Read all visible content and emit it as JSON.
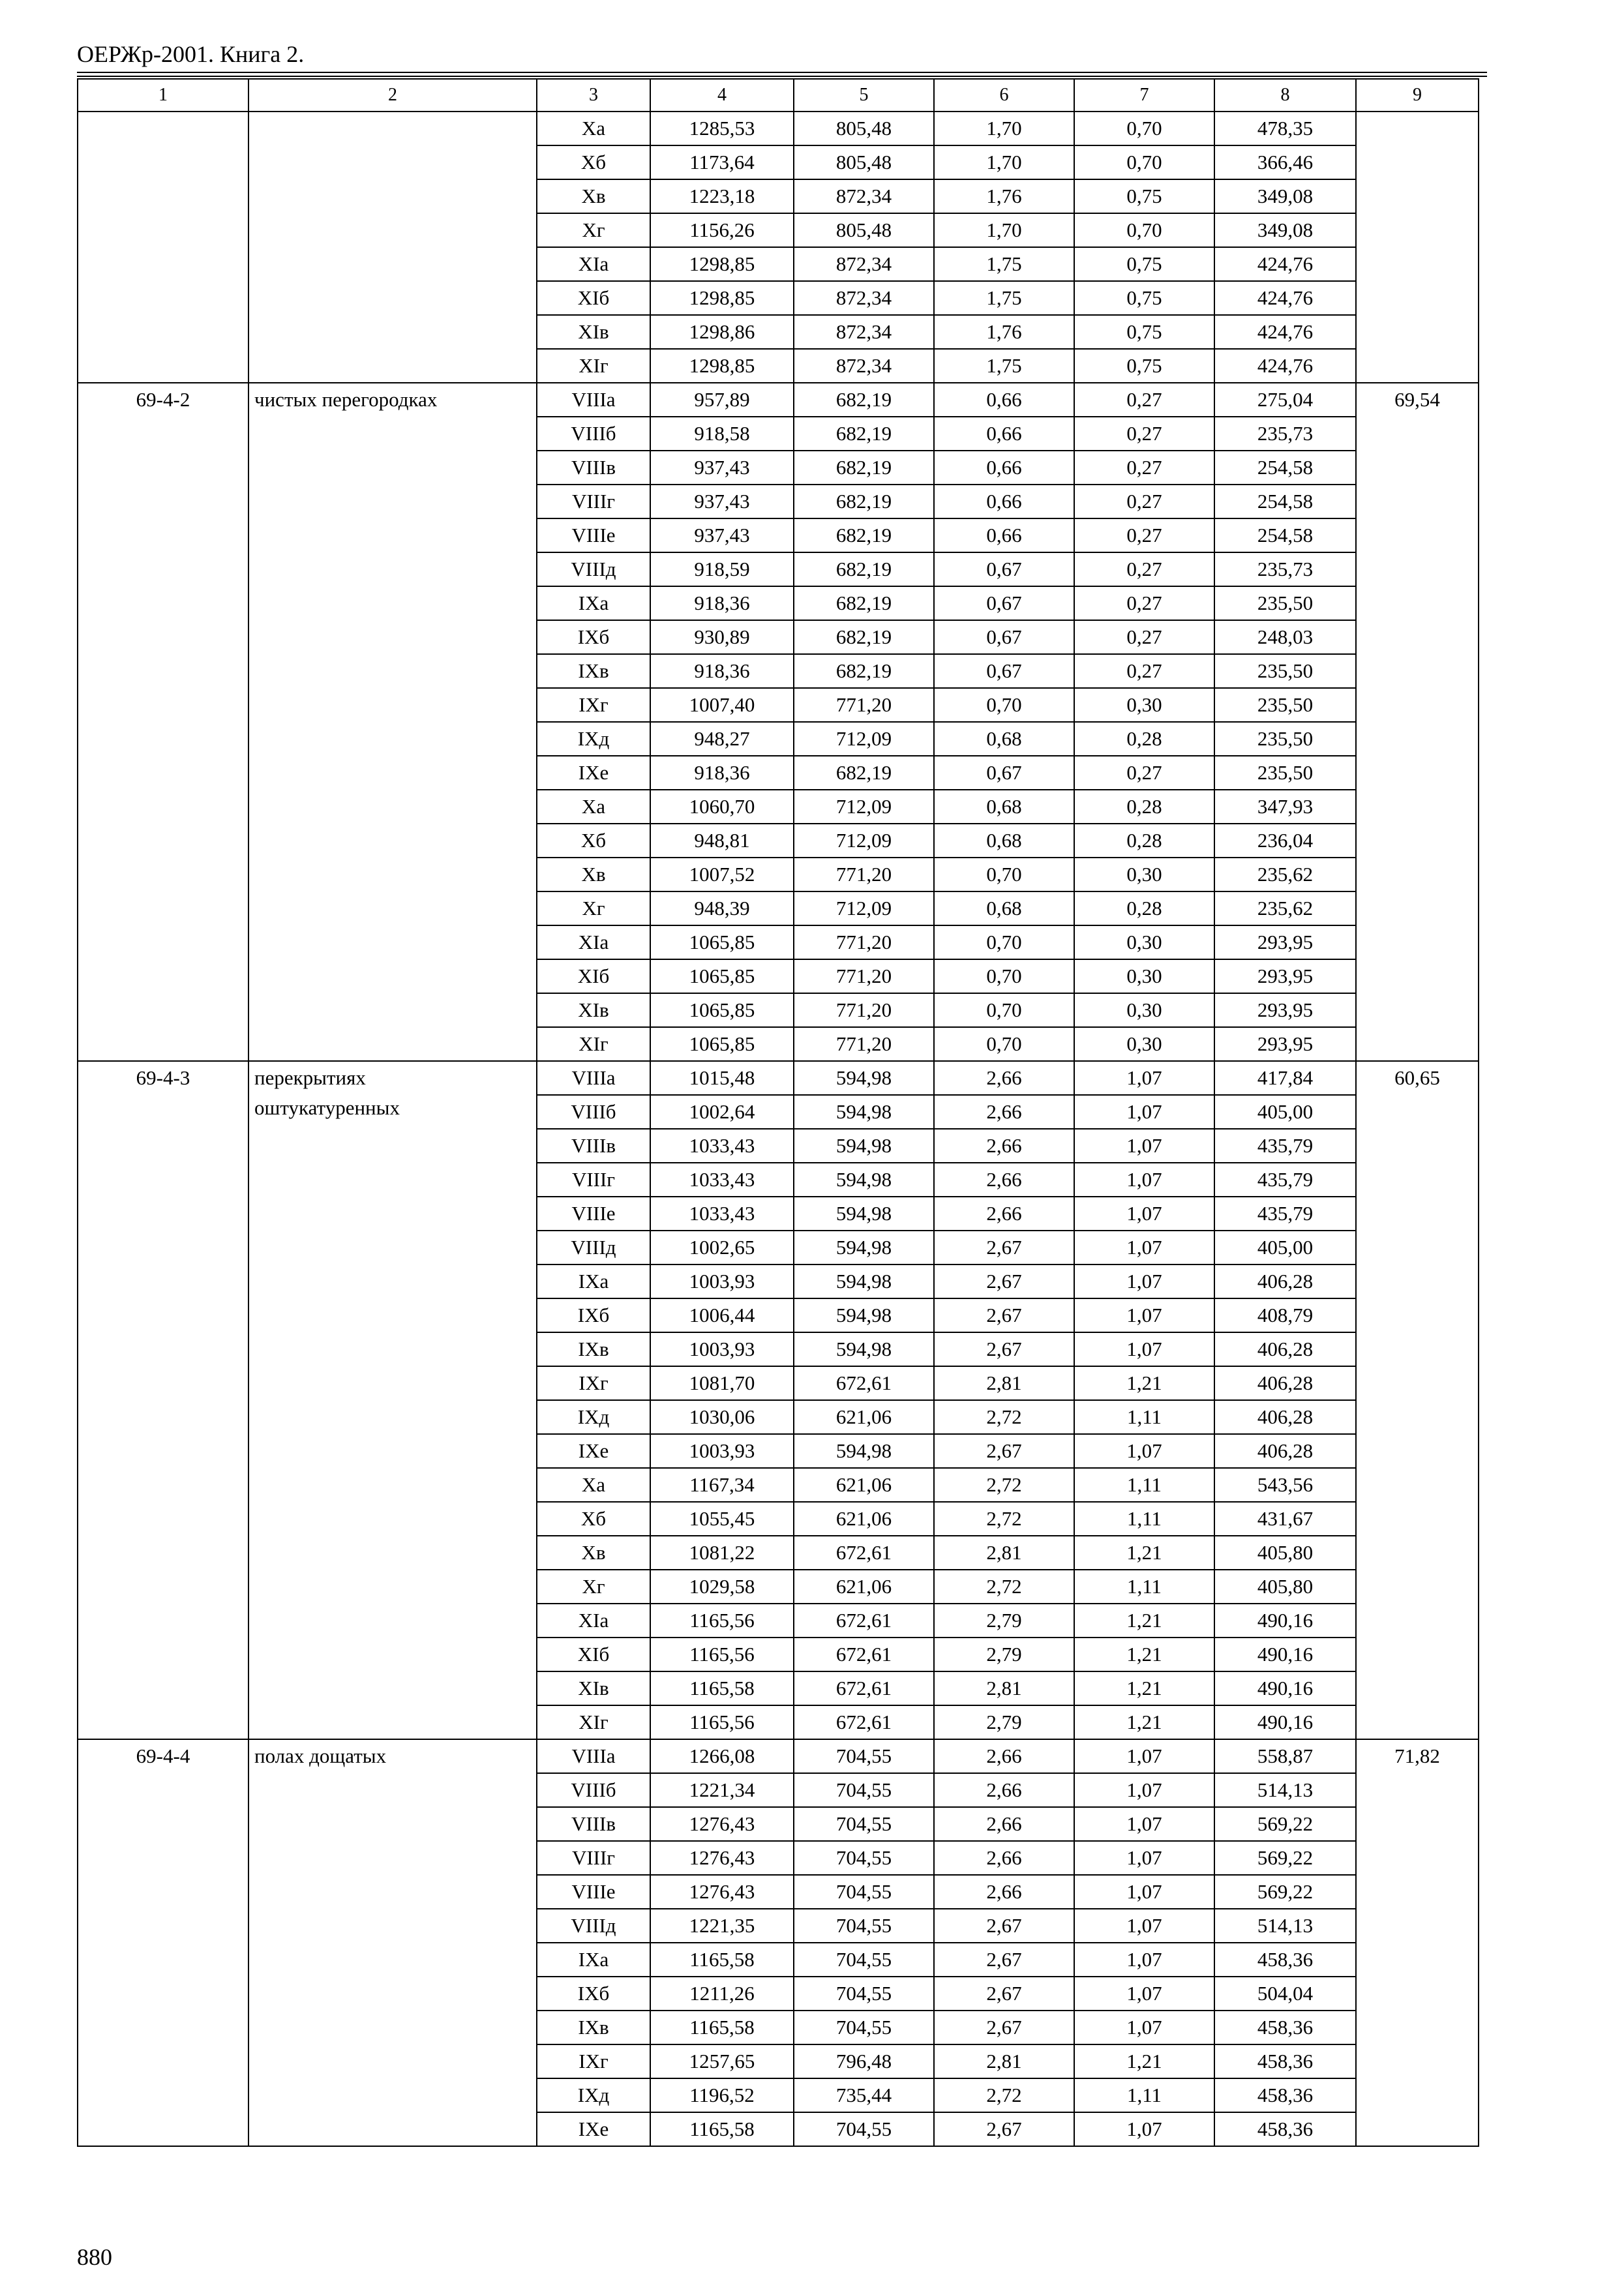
{
  "header": {
    "title": "ОЕРЖр-2001. Книга 2."
  },
  "table": {
    "columns": [
      "1",
      "2",
      "3",
      "4",
      "5",
      "6",
      "7",
      "8",
      "9"
    ],
    "groups": [
      {
        "rows": [
          [
            "Xа",
            "1285,53",
            "805,48",
            "1,70",
            "0,70",
            "478,35"
          ],
          [
            "Xб",
            "1173,64",
            "805,48",
            "1,70",
            "0,70",
            "366,46"
          ],
          [
            "Xв",
            "1223,18",
            "872,34",
            "1,76",
            "0,75",
            "349,08"
          ],
          [
            "Xг",
            "1156,26",
            "805,48",
            "1,70",
            "0,70",
            "349,08"
          ],
          [
            "XIа",
            "1298,85",
            "872,34",
            "1,75",
            "0,75",
            "424,76"
          ],
          [
            "XIб",
            "1298,85",
            "872,34",
            "1,75",
            "0,75",
            "424,76"
          ],
          [
            "XIв",
            "1298,86",
            "872,34",
            "1,76",
            "0,75",
            "424,76"
          ],
          [
            "XIг",
            "1298,85",
            "872,34",
            "1,75",
            "0,75",
            "424,76"
          ]
        ]
      },
      {
        "code": "69-4-2",
        "name": "чистых перегородках",
        "total": "69,54",
        "rows": [
          [
            "VIIIа",
            "957,89",
            "682,19",
            "0,66",
            "0,27",
            "275,04"
          ],
          [
            "VIIIб",
            "918,58",
            "682,19",
            "0,66",
            "0,27",
            "235,73"
          ],
          [
            "VIIIв",
            "937,43",
            "682,19",
            "0,66",
            "0,27",
            "254,58"
          ],
          [
            "VIIIг",
            "937,43",
            "682,19",
            "0,66",
            "0,27",
            "254,58"
          ],
          [
            "VIIIе",
            "937,43",
            "682,19",
            "0,66",
            "0,27",
            "254,58"
          ],
          [
            "VIIIд",
            "918,59",
            "682,19",
            "0,67",
            "0,27",
            "235,73"
          ],
          [
            "IXа",
            "918,36",
            "682,19",
            "0,67",
            "0,27",
            "235,50"
          ],
          [
            "IXб",
            "930,89",
            "682,19",
            "0,67",
            "0,27",
            "248,03"
          ],
          [
            "IXв",
            "918,36",
            "682,19",
            "0,67",
            "0,27",
            "235,50"
          ],
          [
            "IXг",
            "1007,40",
            "771,20",
            "0,70",
            "0,30",
            "235,50"
          ],
          [
            "IXд",
            "948,27",
            "712,09",
            "0,68",
            "0,28",
            "235,50"
          ],
          [
            "IXе",
            "918,36",
            "682,19",
            "0,67",
            "0,27",
            "235,50"
          ],
          [
            "Xа",
            "1060,70",
            "712,09",
            "0,68",
            "0,28",
            "347,93"
          ],
          [
            "Xб",
            "948,81",
            "712,09",
            "0,68",
            "0,28",
            "236,04"
          ],
          [
            "Xв",
            "1007,52",
            "771,20",
            "0,70",
            "0,30",
            "235,62"
          ],
          [
            "Xг",
            "948,39",
            "712,09",
            "0,68",
            "0,28",
            "235,62"
          ],
          [
            "XIа",
            "1065,85",
            "771,20",
            "0,70",
            "0,30",
            "293,95"
          ],
          [
            "XIб",
            "1065,85",
            "771,20",
            "0,70",
            "0,30",
            "293,95"
          ],
          [
            "XIв",
            "1065,85",
            "771,20",
            "0,70",
            "0,30",
            "293,95"
          ],
          [
            "XIг",
            "1065,85",
            "771,20",
            "0,70",
            "0,30",
            "293,95"
          ]
        ]
      },
      {
        "code": "69-4-3",
        "name": "перекрытиях\nоштукатуренных",
        "total": "60,65",
        "rows": [
          [
            "VIIIа",
            "1015,48",
            "594,98",
            "2,66",
            "1,07",
            "417,84"
          ],
          [
            "VIIIб",
            "1002,64",
            "594,98",
            "2,66",
            "1,07",
            "405,00"
          ],
          [
            "VIIIв",
            "1033,43",
            "594,98",
            "2,66",
            "1,07",
            "435,79"
          ],
          [
            "VIIIг",
            "1033,43",
            "594,98",
            "2,66",
            "1,07",
            "435,79"
          ],
          [
            "VIIIе",
            "1033,43",
            "594,98",
            "2,66",
            "1,07",
            "435,79"
          ],
          [
            "VIIIд",
            "1002,65",
            "594,98",
            "2,67",
            "1,07",
            "405,00"
          ],
          [
            "IXа",
            "1003,93",
            "594,98",
            "2,67",
            "1,07",
            "406,28"
          ],
          [
            "IXб",
            "1006,44",
            "594,98",
            "2,67",
            "1,07",
            "408,79"
          ],
          [
            "IXв",
            "1003,93",
            "594,98",
            "2,67",
            "1,07",
            "406,28"
          ],
          [
            "IXг",
            "1081,70",
            "672,61",
            "2,81",
            "1,21",
            "406,28"
          ],
          [
            "IXд",
            "1030,06",
            "621,06",
            "2,72",
            "1,11",
            "406,28"
          ],
          [
            "IXе",
            "1003,93",
            "594,98",
            "2,67",
            "1,07",
            "406,28"
          ],
          [
            "Xа",
            "1167,34",
            "621,06",
            "2,72",
            "1,11",
            "543,56"
          ],
          [
            "Xб",
            "1055,45",
            "621,06",
            "2,72",
            "1,11",
            "431,67"
          ],
          [
            "Xв",
            "1081,22",
            "672,61",
            "2,81",
            "1,21",
            "405,80"
          ],
          [
            "Xг",
            "1029,58",
            "621,06",
            "2,72",
            "1,11",
            "405,80"
          ],
          [
            "XIа",
            "1165,56",
            "672,61",
            "2,79",
            "1,21",
            "490,16"
          ],
          [
            "XIб",
            "1165,56",
            "672,61",
            "2,79",
            "1,21",
            "490,16"
          ],
          [
            "XIв",
            "1165,58",
            "672,61",
            "2,81",
            "1,21",
            "490,16"
          ],
          [
            "XIг",
            "1165,56",
            "672,61",
            "2,79",
            "1,21",
            "490,16"
          ]
        ]
      },
      {
        "code": "69-4-4",
        "name": "полах дощатых",
        "total": "71,82",
        "rows": [
          [
            "VIIIа",
            "1266,08",
            "704,55",
            "2,66",
            "1,07",
            "558,87"
          ],
          [
            "VIIIб",
            "1221,34",
            "704,55",
            "2,66",
            "1,07",
            "514,13"
          ],
          [
            "VIIIв",
            "1276,43",
            "704,55",
            "2,66",
            "1,07",
            "569,22"
          ],
          [
            "VIIIг",
            "1276,43",
            "704,55",
            "2,66",
            "1,07",
            "569,22"
          ],
          [
            "VIIIе",
            "1276,43",
            "704,55",
            "2,66",
            "1,07",
            "569,22"
          ],
          [
            "VIIIд",
            "1221,35",
            "704,55",
            "2,67",
            "1,07",
            "514,13"
          ],
          [
            "IXа",
            "1165,58",
            "704,55",
            "2,67",
            "1,07",
            "458,36"
          ],
          [
            "IXб",
            "1211,26",
            "704,55",
            "2,67",
            "1,07",
            "504,04"
          ],
          [
            "IXв",
            "1165,58",
            "704,55",
            "2,67",
            "1,07",
            "458,36"
          ],
          [
            "IXг",
            "1257,65",
            "796,48",
            "2,81",
            "1,21",
            "458,36"
          ],
          [
            "IXд",
            "1196,52",
            "735,44",
            "2,72",
            "1,11",
            "458,36"
          ],
          [
            "IXе",
            "1165,58",
            "704,55",
            "2,67",
            "1,07",
            "458,36"
          ]
        ]
      }
    ]
  },
  "footer": {
    "page": "880"
  }
}
